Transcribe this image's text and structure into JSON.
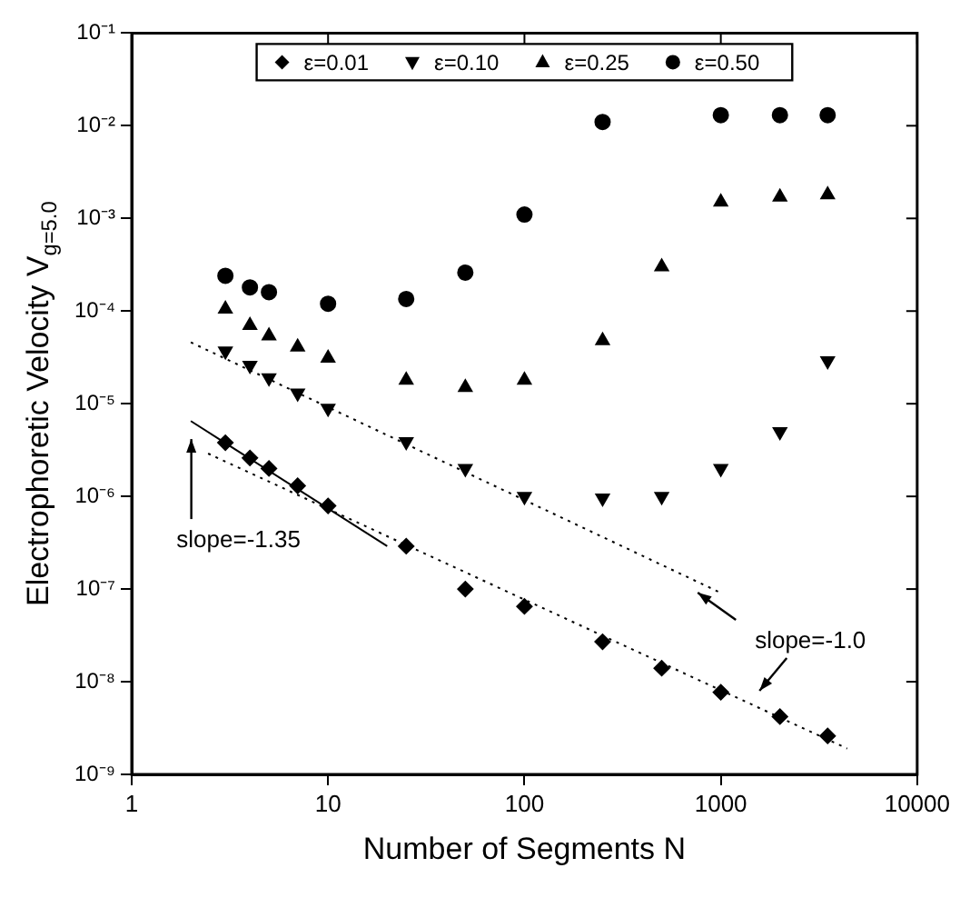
{
  "chart_data": {
    "type": "scatter",
    "xlabel": "Number of Segments N",
    "ylabel": "Electrophoretic Velocity V$_{g=5.0}$",
    "log": "xy",
    "grid": false,
    "legend": "top",
    "xlim": [
      1,
      10000
    ],
    "ylim": [
      1e-09,
      0.1
    ],
    "xticks": [
      1,
      10,
      100,
      1000,
      10000
    ],
    "yticks": [
      {
        "value": 1e-09,
        "label": "10⁻⁹"
      },
      {
        "value": 1e-08,
        "label": "10⁻⁸"
      },
      {
        "value": 1e-07,
        "label": "10⁻⁷"
      },
      {
        "value": 1e-06,
        "label": "10⁻⁶"
      },
      {
        "value": 1e-05,
        "label": "10⁻⁵"
      },
      {
        "value": 0.0001,
        "label": "10⁻⁴"
      },
      {
        "value": 0.001,
        "label": "10⁻³"
      },
      {
        "value": 0.01,
        "label": "10⁻²"
      },
      {
        "value": 0.1,
        "label": "10⁻¹"
      }
    ],
    "x": [
      3,
      4,
      5,
      7,
      10,
      25,
      50,
      100,
      250,
      500,
      1000,
      2000,
      3500
    ],
    "series": [
      {
        "name": "ε=0.01",
        "color": "#000000",
        "marker": "diamond",
        "values": [
          3.8e-06,
          2.6e-06,
          2e-06,
          1.3e-06,
          7.9e-07,
          2.9e-07,
          1e-07,
          6.5e-08,
          2.7e-08,
          1.4e-08,
          7.7e-09,
          4.2e-09,
          2.6e-09
        ]
      },
      {
        "name": "ε=0.10",
        "color": "#000000",
        "marker": "triangle-down",
        "values": [
          3.7e-05,
          2.6e-05,
          1.9e-05,
          1.3e-05,
          8.9e-06,
          3.9e-06,
          2e-06,
          1e-06,
          9.6e-07,
          1e-06,
          2e-06,
          5e-06,
          2.9e-05
        ]
      },
      {
        "name": "ε=0.25",
        "color": "#000000",
        "marker": "triangle",
        "values": [
          0.000105,
          7e-05,
          5.4e-05,
          4.1e-05,
          3.1e-05,
          1.8e-05,
          1.5e-05,
          1.8e-05,
          4.8e-05,
          0.0003,
          0.0015,
          0.0017,
          0.0018
        ]
      },
      {
        "name": "ε=0.50",
        "color": "#000000",
        "marker": "circle",
        "values": [
          0.00024,
          0.00018,
          0.00016,
          null,
          0.00012,
          0.000135,
          0.00026,
          0.0011,
          0.011,
          null,
          0.013,
          0.013,
          0.013
        ]
      },
      {
        "type": "line",
        "x": [
          2,
          1000
        ],
        "values": [
          4.6e-05,
          9.1e-08
        ],
        "color": "#000000",
        "line_style": "dotted",
        "marker": "none"
      },
      {
        "type": "line",
        "x": [
          2.45,
          4400
        ],
        "values": [
          2.9e-06,
          1.9e-09
        ],
        "color": "#000000",
        "line_style": "dotted",
        "marker": "none"
      },
      {
        "type": "line",
        "x": [
          2,
          20
        ],
        "values": [
          6.5e-06,
          2.9e-07
        ],
        "color": "#000000",
        "line_style": "solid",
        "marker": "none"
      }
    ],
    "annotations": [
      "slope=-1.35",
      "slope=-1.0"
    ]
  }
}
